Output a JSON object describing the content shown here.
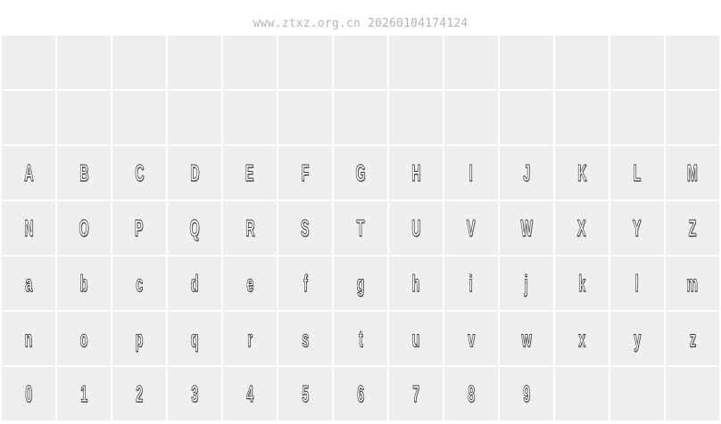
{
  "header": {
    "text": "www.ztxz.org.cn 20260104174124"
  },
  "grid": {
    "columns": 13,
    "rows": [
      [
        "",
        "",
        "",
        "",
        "",
        "",
        "",
        "",
        "",
        "",
        "",
        "",
        ""
      ],
      [
        "",
        "",
        "",
        "",
        "",
        "",
        "",
        "",
        "",
        "",
        "",
        "",
        ""
      ],
      [
        "A",
        "B",
        "C",
        "D",
        "E",
        "F",
        "G",
        "H",
        "I",
        "J",
        "K",
        "L",
        "M"
      ],
      [
        "N",
        "O",
        "P",
        "Q",
        "R",
        "S",
        "T",
        "U",
        "V",
        "W",
        "X",
        "Y",
        "Z"
      ],
      [
        "a",
        "b",
        "c",
        "d",
        "e",
        "f",
        "g",
        "h",
        "i",
        "j",
        "k",
        "l",
        "m"
      ],
      [
        "n",
        "o",
        "p",
        "q",
        "r",
        "s",
        "t",
        "u",
        "v",
        "w",
        "x",
        "y",
        "z"
      ],
      [
        "0",
        "1",
        "2",
        "3",
        "4",
        "5",
        "6",
        "7",
        "8",
        "9",
        "",
        "",
        ""
      ]
    ]
  }
}
